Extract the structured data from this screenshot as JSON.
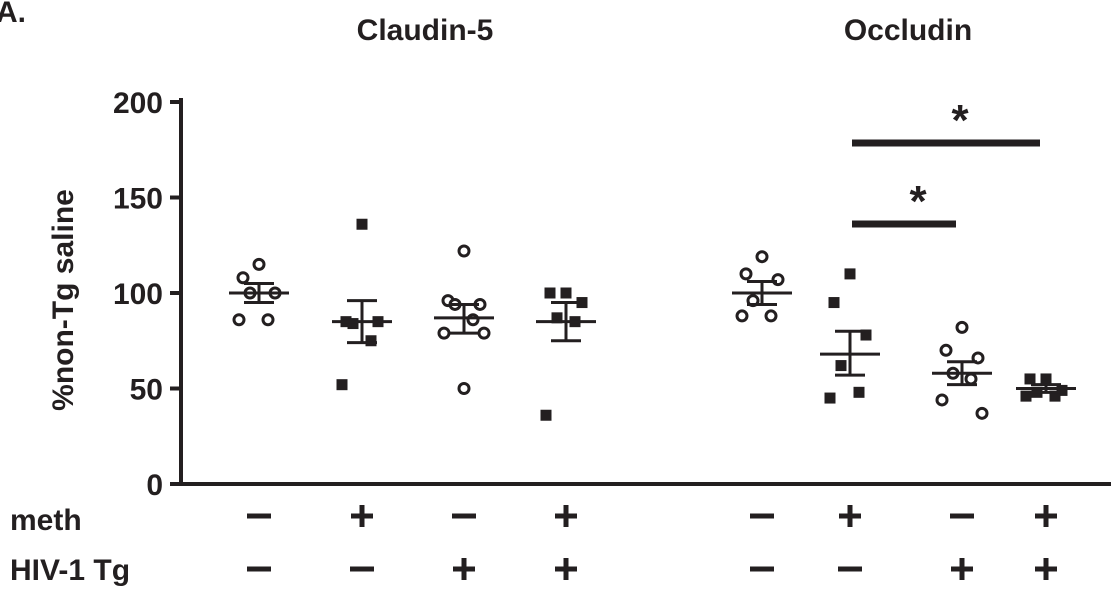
{
  "panel_label": "A.",
  "chart_data": {
    "type": "scatter",
    "titles": [
      "Claudin-5",
      "Occludin"
    ],
    "ylabel": "%non-Tg saline",
    "ylim": [
      0,
      200
    ],
    "yticks": [
      0,
      50,
      100,
      150,
      200
    ],
    "row_labels": [
      "meth",
      "HIV-1 Tg"
    ],
    "groups": [
      {
        "panel": "Claudin-5",
        "meth": "–",
        "hiv": "–",
        "marker": "open-circle",
        "points": [
          115,
          108,
          100,
          100,
          86,
          86
        ],
        "mean": 100,
        "sem_low": 95,
        "sem_high": 105
      },
      {
        "panel": "Claudin-5",
        "meth": "+",
        "hiv": "–",
        "marker": "filled-square",
        "points": [
          136,
          85,
          85,
          84,
          75,
          52
        ],
        "mean": 85,
        "sem_low": 74,
        "sem_high": 96
      },
      {
        "panel": "Claudin-5",
        "meth": "–",
        "hiv": "+",
        "marker": "open-circle",
        "points": [
          122,
          96,
          94,
          94,
          86,
          79,
          79,
          50
        ],
        "mean": 87,
        "sem_low": 79,
        "sem_high": 94
      },
      {
        "panel": "Claudin-5",
        "meth": "+",
        "hiv": "+",
        "marker": "filled-square",
        "points": [
          100,
          100,
          95,
          87,
          85,
          36
        ],
        "mean": 85,
        "sem_low": 75,
        "sem_high": 95
      },
      {
        "panel": "Occludin",
        "meth": "–",
        "hiv": "–",
        "marker": "open-circle",
        "points": [
          119,
          110,
          107,
          96,
          88,
          88
        ],
        "mean": 100,
        "sem_low": 94,
        "sem_high": 106
      },
      {
        "panel": "Occludin",
        "meth": "+",
        "hiv": "–",
        "marker": "filled-square",
        "points": [
          110,
          95,
          78,
          62,
          48,
          45
        ],
        "mean": 68,
        "sem_low": 57,
        "sem_high": 80
      },
      {
        "panel": "Occludin",
        "meth": "–",
        "hiv": "+",
        "marker": "open-circle",
        "points": [
          82,
          70,
          66,
          58,
          55,
          44,
          37
        ],
        "mean": 58,
        "sem_low": 52,
        "sem_high": 64
      },
      {
        "panel": "Occludin",
        "meth": "+",
        "hiv": "+",
        "marker": "filled-square",
        "points": [
          55,
          55,
          49,
          48,
          46,
          46
        ],
        "mean": 50,
        "sem_low": 48,
        "sem_high": 52
      }
    ],
    "significance": [
      {
        "from_group": 5,
        "to_group": 6,
        "label": "*"
      },
      {
        "from_group": 5,
        "to_group": 7,
        "label": "*"
      }
    ]
  }
}
